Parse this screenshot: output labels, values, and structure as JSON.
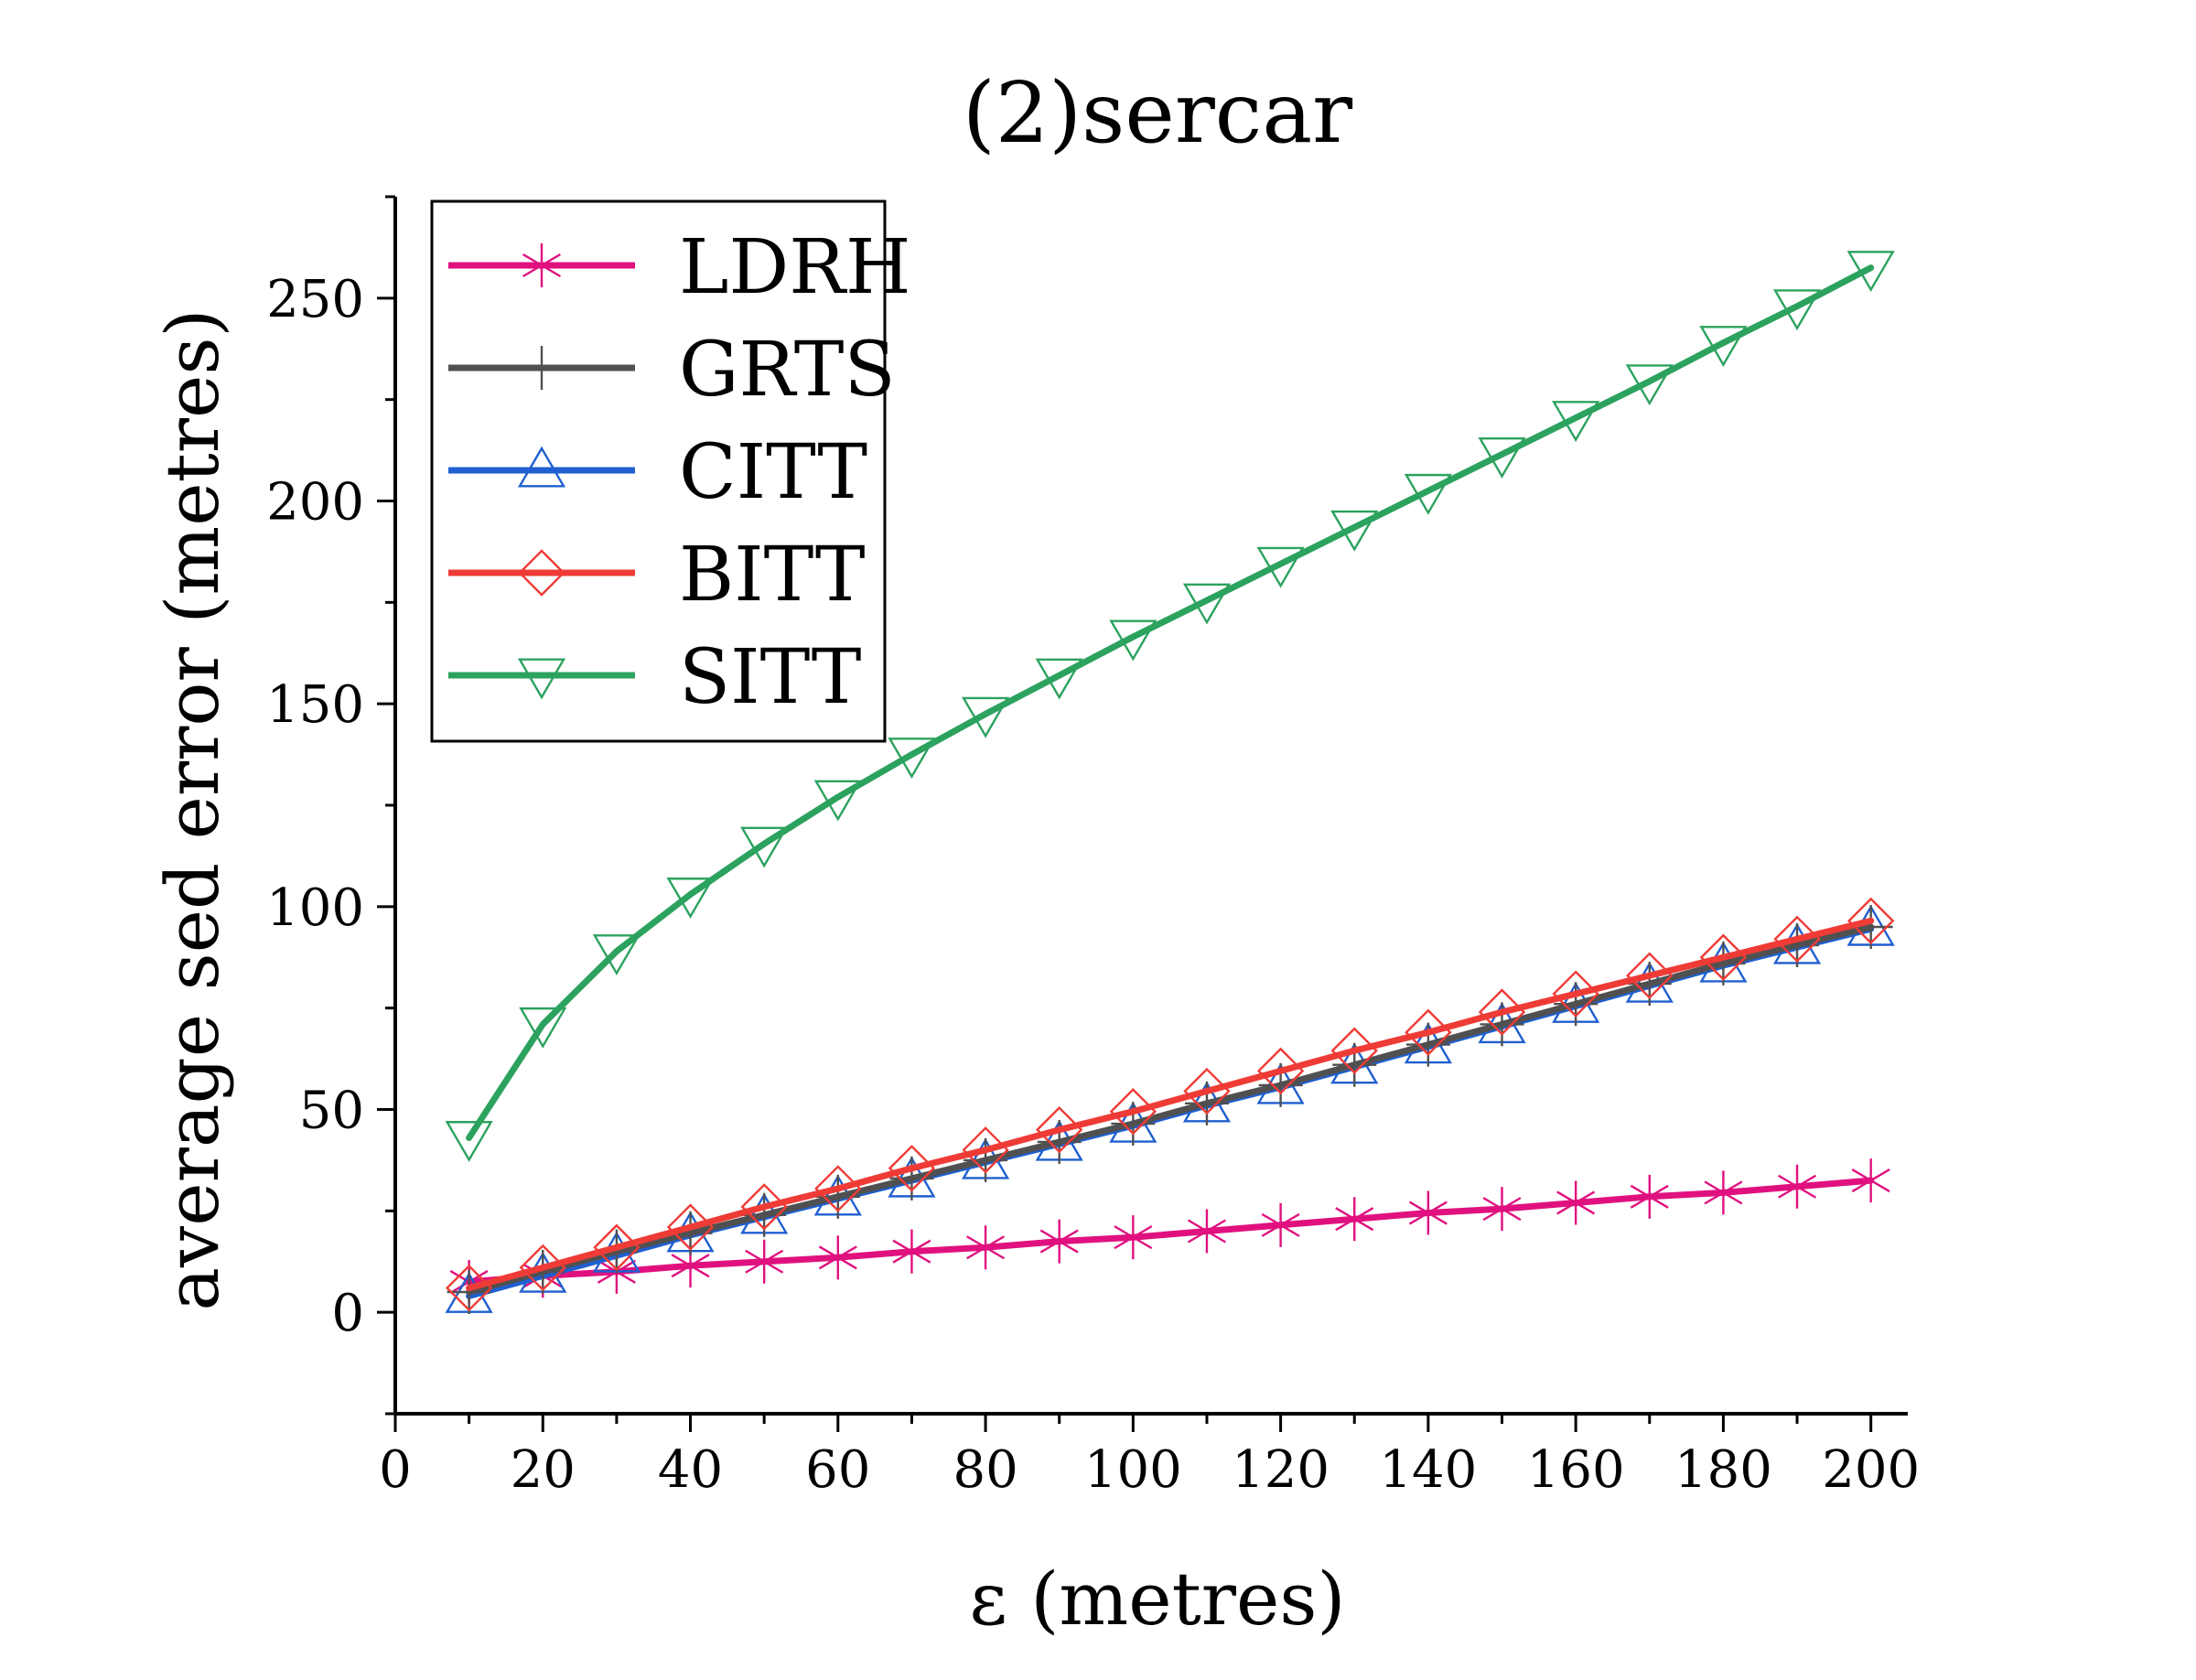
{
  "chart_data": {
    "type": "line",
    "title": "(2)sercar",
    "xlabel": "ε (metres)",
    "ylabel": "average sed error (metres)",
    "xlim": [
      0,
      205
    ],
    "ylim": [
      -25,
      275
    ],
    "xticks": [
      0,
      20,
      40,
      60,
      80,
      100,
      120,
      140,
      160,
      180,
      200
    ],
    "yticks": [
      0,
      50,
      100,
      150,
      200,
      250
    ],
    "grid": false,
    "legend_position": "top-left",
    "x": [
      10,
      20,
      30,
      40,
      50,
      60,
      70,
      80,
      90,
      100,
      110,
      120,
      130,
      140,
      150,
      160,
      170,
      180,
      190,
      200
    ],
    "series": [
      {
        "name": "LDRH",
        "color": "#e0117f",
        "marker": "asterisk",
        "values": [
          7.5,
          9,
          10,
          11.5,
          12.5,
          13.5,
          15,
          16,
          17.5,
          18.5,
          20,
          21.5,
          23,
          24.5,
          25.5,
          27,
          28.5,
          29.5,
          31,
          32.5
        ]
      },
      {
        "name": "GRTS",
        "color": "#505050",
        "marker": "plus",
        "values": [
          5,
          10,
          15,
          19.5,
          24,
          28.5,
          33,
          37.5,
          42,
          46.5,
          51.5,
          56,
          61,
          66,
          71,
          76,
          81,
          86,
          90.5,
          95
        ]
      },
      {
        "name": "CITT",
        "color": "#1f5fd0",
        "marker": "triangle-up",
        "values": [
          4,
          9,
          14,
          19,
          23.5,
          28,
          32.5,
          37,
          41.5,
          46,
          51,
          55.5,
          60.5,
          65.5,
          70.5,
          75.5,
          80.5,
          85.5,
          90,
          94.5
        ]
      },
      {
        "name": "BITT",
        "color": "#ef3b36",
        "marker": "diamond",
        "values": [
          6,
          11,
          16,
          21,
          26,
          30.5,
          35.5,
          40,
          45,
          49.5,
          54.5,
          59.5,
          64.5,
          69,
          74,
          78.5,
          83,
          87.5,
          92,
          96.5
        ]
      },
      {
        "name": "SITT",
        "color": "#2ca25f",
        "marker": "triangle-down",
        "values": [
          43,
          71,
          89,
          103,
          115.5,
          127,
          137.5,
          147.5,
          157,
          166.5,
          175.5,
          184.5,
          193.5,
          202.5,
          211.5,
          220.5,
          229.5,
          239,
          248,
          257.5
        ]
      }
    ]
  }
}
